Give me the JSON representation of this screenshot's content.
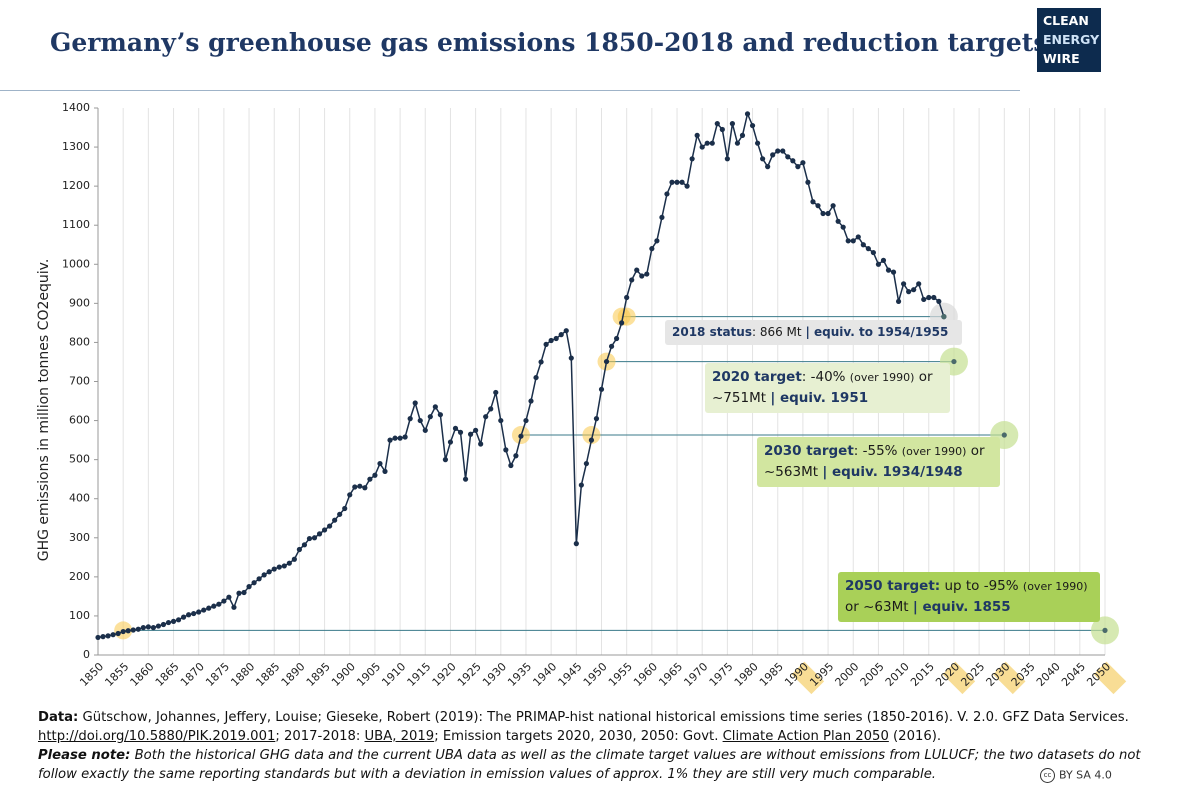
{
  "title": "Germany’s greenhouse gas emissions 1850-2018 and reduction targets",
  "logo": [
    "CLEAN",
    "ENERGY",
    "WIRE"
  ],
  "chart_data": {
    "type": "line",
    "y_label": "GHG emissions in million tonnes CO2equiv.",
    "color": "#1b2f4a",
    "grid": true,
    "x": [
      1850,
      1851,
      1852,
      1853,
      1854,
      1855,
      1856,
      1857,
      1858,
      1859,
      1860,
      1861,
      1862,
      1863,
      1864,
      1865,
      1866,
      1867,
      1868,
      1869,
      1870,
      1871,
      1872,
      1873,
      1874,
      1875,
      1876,
      1877,
      1878,
      1879,
      1880,
      1881,
      1882,
      1883,
      1884,
      1885,
      1886,
      1887,
      1888,
      1889,
      1890,
      1891,
      1892,
      1893,
      1894,
      1895,
      1896,
      1897,
      1898,
      1899,
      1900,
      1901,
      1902,
      1903,
      1904,
      1905,
      1906,
      1907,
      1908,
      1909,
      1910,
      1911,
      1912,
      1913,
      1914,
      1915,
      1916,
      1917,
      1918,
      1919,
      1920,
      1921,
      1922,
      1923,
      1924,
      1925,
      1926,
      1927,
      1928,
      1929,
      1930,
      1931,
      1932,
      1933,
      1934,
      1935,
      1936,
      1937,
      1938,
      1939,
      1940,
      1941,
      1942,
      1943,
      1944,
      1945,
      1946,
      1947,
      1948,
      1949,
      1950,
      1951,
      1952,
      1953,
      1954,
      1955,
      1956,
      1957,
      1958,
      1959,
      1960,
      1961,
      1962,
      1963,
      1964,
      1965,
      1966,
      1967,
      1968,
      1969,
      1970,
      1971,
      1972,
      1973,
      1974,
      1975,
      1976,
      1977,
      1978,
      1979,
      1980,
      1981,
      1982,
      1983,
      1984,
      1985,
      1986,
      1987,
      1988,
      1989,
      1990,
      1991,
      1992,
      1993,
      1994,
      1995,
      1996,
      1997,
      1998,
      1999,
      2000,
      2001,
      2002,
      2003,
      2004,
      2005,
      2006,
      2007,
      2008,
      2009,
      2010,
      2011,
      2012,
      2013,
      2014,
      2015,
      2016,
      2017,
      2018
    ],
    "values": [
      45,
      47,
      49,
      52,
      55,
      60,
      62,
      64,
      66,
      70,
      72,
      70,
      74,
      78,
      83,
      86,
      90,
      97,
      103,
      106,
      110,
      115,
      120,
      125,
      130,
      138,
      148,
      122,
      158,
      160,
      175,
      185,
      195,
      205,
      213,
      220,
      225,
      228,
      235,
      245,
      270,
      282,
      298,
      300,
      310,
      320,
      330,
      345,
      360,
      375,
      410,
      430,
      432,
      428,
      450,
      460,
      490,
      470,
      550,
      555,
      555,
      558,
      605,
      645,
      600,
      575,
      610,
      635,
      615,
      500,
      545,
      580,
      570,
      450,
      565,
      575,
      540,
      610,
      630,
      672,
      600,
      525,
      485,
      510,
      560,
      600,
      650,
      710,
      750,
      795,
      805,
      810,
      820,
      830,
      760,
      285,
      435,
      490,
      550,
      605,
      680,
      751,
      790,
      810,
      850,
      915,
      960,
      985,
      970,
      975,
      1040,
      1060,
      1120,
      1180,
      1210,
      1210,
      1210,
      1200,
      1270,
      1330,
      1300,
      1310,
      1310,
      1360,
      1345,
      1270,
      1360,
      1310,
      1330,
      1385,
      1355,
      1310,
      1270,
      1250,
      1280,
      1290,
      1290,
      1275,
      1265,
      1250,
      1260,
      1210,
      1160,
      1150,
      1130,
      1130,
      1150,
      1110,
      1095,
      1060,
      1060,
      1070,
      1050,
      1040,
      1030,
      1000,
      1010,
      985,
      980,
      905,
      950,
      930,
      935,
      950,
      910,
      915,
      915,
      905,
      866
    ],
    "xlim": [
      1850,
      2050
    ],
    "xticks": [
      1850,
      1855,
      1860,
      1865,
      1870,
      1875,
      1880,
      1885,
      1890,
      1895,
      1900,
      1905,
      1910,
      1915,
      1920,
      1925,
      1930,
      1935,
      1940,
      1945,
      1950,
      1955,
      1960,
      1965,
      1970,
      1975,
      1980,
      1985,
      1990,
      1995,
      2000,
      2005,
      2010,
      2015,
      2020,
      2025,
      2030,
      2035,
      2040,
      2045,
      2050
    ],
    "highlighted_xticks": [
      1990,
      2020,
      2030,
      2050
    ],
    "ylim": [
      0,
      1400
    ],
    "yticks": [
      0,
      100,
      200,
      300,
      400,
      500,
      600,
      700,
      800,
      900,
      1000,
      1100,
      1200,
      1300,
      1400
    ],
    "annotations": [
      {
        "x": 2018,
        "y": 866,
        "equiv_x": [
          1954,
          1955
        ],
        "parts": [
          "2018 status",
          ": 866 Mt ",
          "| equiv. to 1954/1955"
        ]
      },
      {
        "x": 2020,
        "y": 751,
        "equiv_x": [
          1951
        ],
        "parts": [
          "2020 target",
          ": -40% ",
          "(over 1990)",
          " or ~751Mt ",
          "| equiv. 1951"
        ]
      },
      {
        "x": 2030,
        "y": 563,
        "equiv_x": [
          1934,
          1948
        ],
        "parts": [
          "2030 target",
          ": -55% ",
          "(over 1990)",
          " or ~563Mt ",
          "| equiv. 1934/1948"
        ]
      },
      {
        "x": 2050,
        "y": 63,
        "equiv_x": [
          1855
        ],
        "parts": [
          "2050 target:",
          " up to -95% ",
          "(over 1990)",
          " or ~63Mt ",
          "| equiv. 1855"
        ]
      }
    ]
  },
  "footer": {
    "data_parts": [
      "Data:",
      " Gütschow, Johannes, Jeffery, Louise; Gieseke, Robert (2019): The PRIMAP-hist national historical emissions time series (1850-2016). V. 2.0. GFZ Data Services.",
      "http://doi.org/10.5880/PIK.2019.001",
      "; 2017-2018: ",
      "UBA, 2019",
      "; Emission targets 2020, 2030, 2050: Govt. ",
      "Climate Action Plan 2050",
      " (2016)."
    ],
    "note_parts": [
      "Please note:",
      " Both the historical GHG data and the current UBA data as well as the climate target values are without emissions from LULUCF; the two datasets do not follow exactly the same reporting standards but with a deviation in emission values of approx. 1% they are still very much comparable."
    ],
    "license": "BY SA 4.0"
  }
}
